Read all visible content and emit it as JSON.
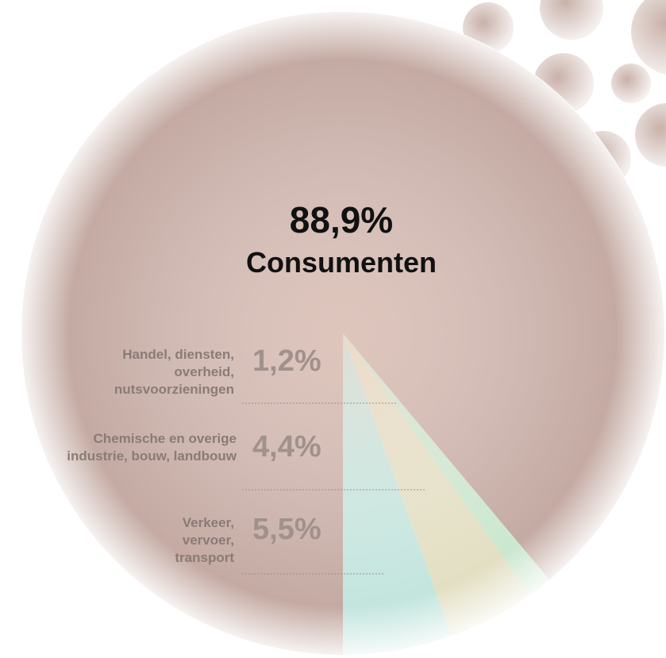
{
  "chart_data": {
    "type": "pie",
    "categories": [
      "Consumenten",
      "Handel, diensten, overheid, nutsvoorzieningen",
      "Chemische en overige industrie, bouw, landbouw",
      "Verkeer, vervoer, transport"
    ],
    "values": [
      88.9,
      1.2,
      4.4,
      5.5
    ],
    "value_labels": [
      "88,9%",
      "1,2%",
      "4,4%",
      "5,5%"
    ],
    "colors": [
      "#c4aaa2",
      "#cbe7cf",
      "#e3dfc3",
      "#c3e5de"
    ]
  }
}
